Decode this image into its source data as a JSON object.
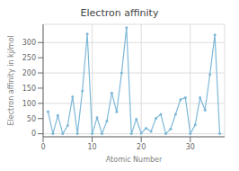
{
  "chart_data": {
    "type": "line",
    "title": "Electron affinity",
    "xlabel": "Atomic Number",
    "ylabel": "Electron affinity in kj/mol",
    "x": [
      1,
      2,
      3,
      4,
      5,
      6,
      7,
      8,
      9,
      10,
      11,
      12,
      13,
      14,
      15,
      16,
      17,
      18,
      19,
      20,
      21,
      22,
      23,
      24,
      25,
      26,
      27,
      28,
      29,
      30,
      31,
      32,
      33,
      34,
      35,
      36
    ],
    "values": [
      73,
      0,
      60,
      0,
      27,
      122,
      0,
      141,
      328,
      0,
      53,
      0,
      42,
      134,
      72,
      200,
      349,
      0,
      48,
      2,
      18,
      8,
      51,
      64,
      0,
      16,
      64,
      112,
      119,
      0,
      29,
      119,
      78,
      195,
      325,
      0
    ],
    "color": "#7db8d8",
    "marker": "circle",
    "xlim": [
      0,
      37
    ],
    "ylim": [
      -10,
      360
    ],
    "xticks": [
      0,
      10,
      20,
      30
    ],
    "yticks": [
      0,
      50,
      100,
      150,
      200,
      250,
      300
    ],
    "grid": true
  }
}
